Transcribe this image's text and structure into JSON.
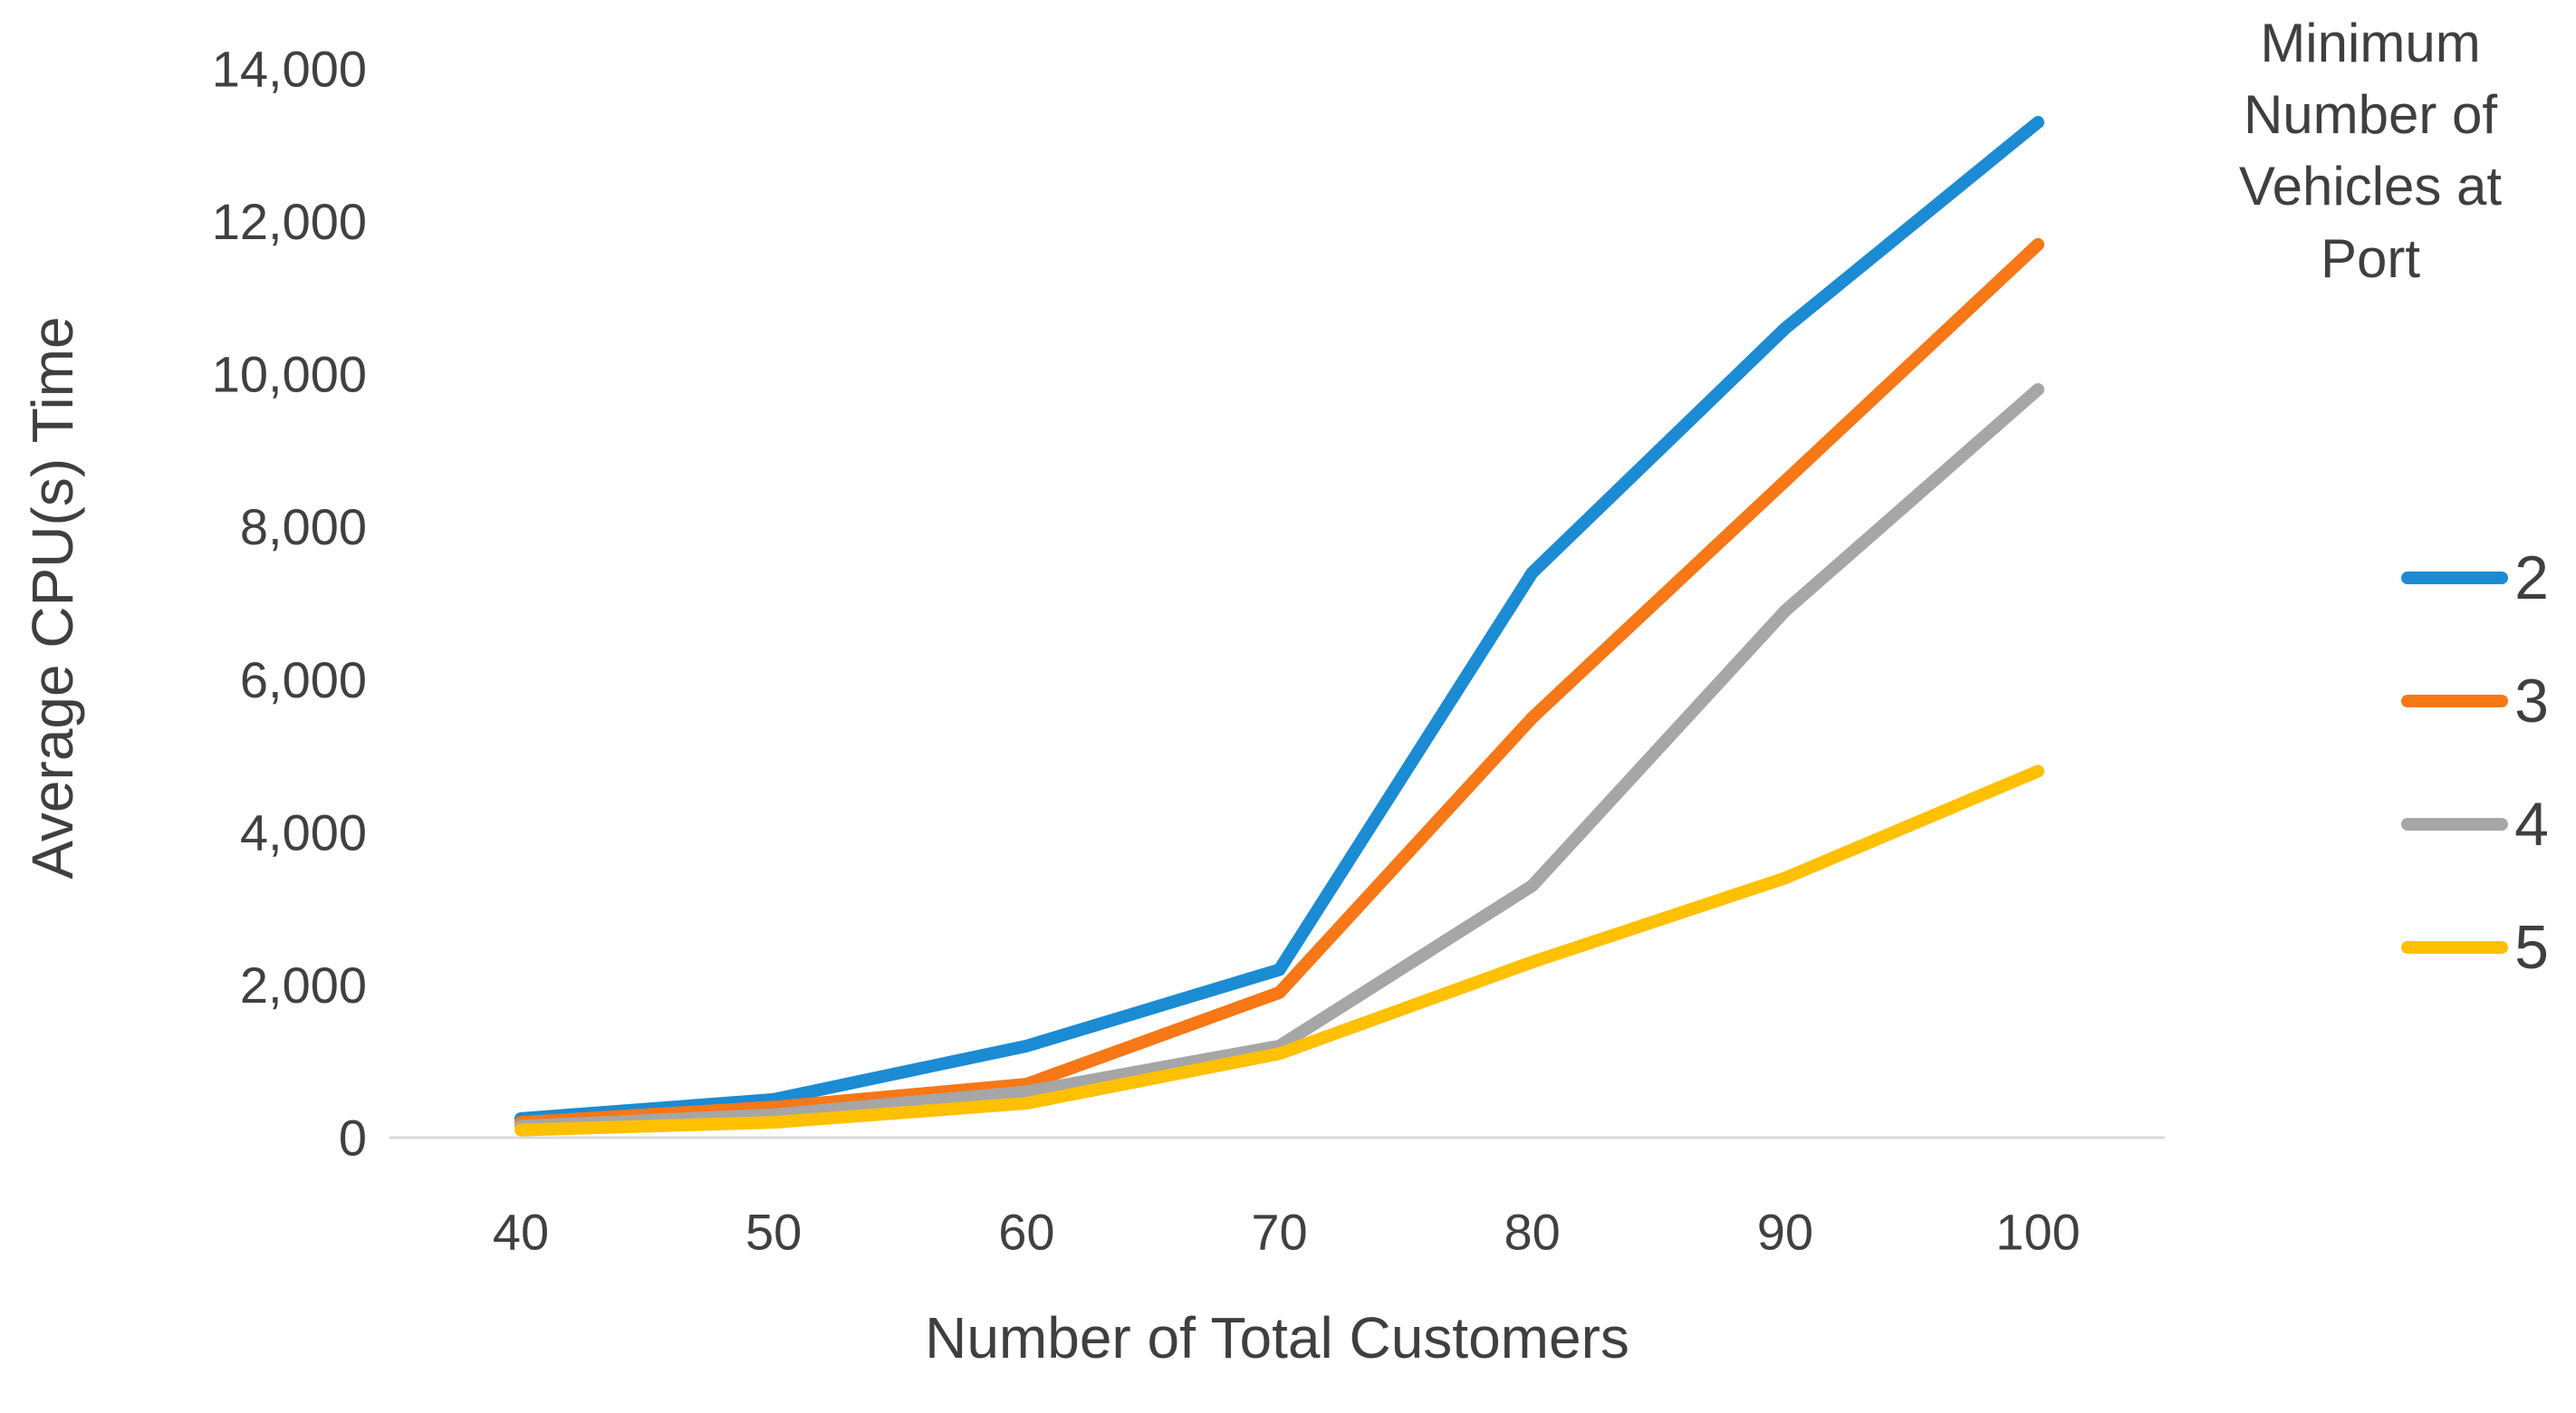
{
  "chart_data": {
    "type": "line",
    "title": "",
    "xlabel": "Number of Total Customers",
    "ylabel": "Average CPU(s) Time",
    "x": [
      40,
      50,
      60,
      70,
      80,
      90,
      100
    ],
    "xtick_labels": [
      "40",
      "50",
      "60",
      "70",
      "80",
      "90",
      "100"
    ],
    "ytick_values": [
      0,
      2000,
      4000,
      6000,
      8000,
      10000,
      12000,
      14000
    ],
    "ytick_labels": [
      "0",
      "2,000",
      "4,000",
      "6,000",
      "8,000",
      "10,000",
      "12,000",
      "14,000"
    ],
    "ylim": [
      0,
      14000
    ],
    "xlim": [
      40,
      100
    ],
    "grid": false,
    "legend_position": "right",
    "legend_title": "Minimum Number of Vehicles at Port",
    "legend_title_lines": [
      "Minimum",
      "Number of",
      "Vehicles at",
      "Port"
    ],
    "series": [
      {
        "name": "2",
        "color": "#1b8bd4",
        "values": [
          250,
          500,
          1200,
          2200,
          7400,
          10600,
          13300
        ]
      },
      {
        "name": "3",
        "color": "#f87716",
        "values": [
          200,
          400,
          700,
          1900,
          5500,
          8600,
          11700
        ]
      },
      {
        "name": "4",
        "color": "#a6a6a6",
        "values": [
          150,
          300,
          600,
          1200,
          3300,
          6900,
          9800
        ]
      },
      {
        "name": "5",
        "color": "#ffc000",
        "values": [
          100,
          200,
          450,
          1100,
          2300,
          3400,
          4800
        ]
      }
    ]
  },
  "colors": {
    "axis_line": "#d9d9d9",
    "tick_text": "#404040",
    "title_text": "#3f3f3f"
  }
}
